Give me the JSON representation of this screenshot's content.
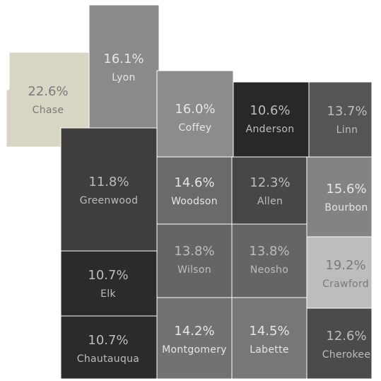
{
  "chart_data": {
    "type": "map",
    "categories": [
      "Chase",
      "Lyon",
      "Coffey",
      "Anderson",
      "Linn",
      "Greenwood",
      "Woodson",
      "Allen",
      "Bourbon",
      "Elk",
      "Wilson",
      "Neosho",
      "Crawford",
      "Chautauqua",
      "Montgomery",
      "Labette",
      "Cherokee"
    ],
    "values": [
      22.6,
      16.1,
      16.0,
      10.6,
      13.7,
      11.8,
      14.6,
      12.3,
      15.6,
      10.7,
      13.8,
      13.8,
      19.2,
      10.7,
      14.2,
      14.5,
      12.6
    ],
    "value_labels": [
      "22.6%",
      "16.1%",
      "16.0%",
      "10.6%",
      "13.7%",
      "11.8%",
      "14.6%",
      "12.3%",
      "15.6%",
      "10.7%",
      "13.8%",
      "13.8%",
      "19.2%",
      "10.7%",
      "14.2%",
      "14.5%",
      "12.6%"
    ],
    "colors": [
      "#d9d5c5",
      "#8a8a8a",
      "#8c8c8c",
      "#282828",
      "#555555",
      "#3e3e3e",
      "#6a6a6a",
      "#474747",
      "#838383",
      "#2b2b2b",
      "#656565",
      "#656565",
      "#bdbdbd",
      "#2b2b2b",
      "#727272",
      "#777777",
      "#4b4b4b"
    ]
  }
}
